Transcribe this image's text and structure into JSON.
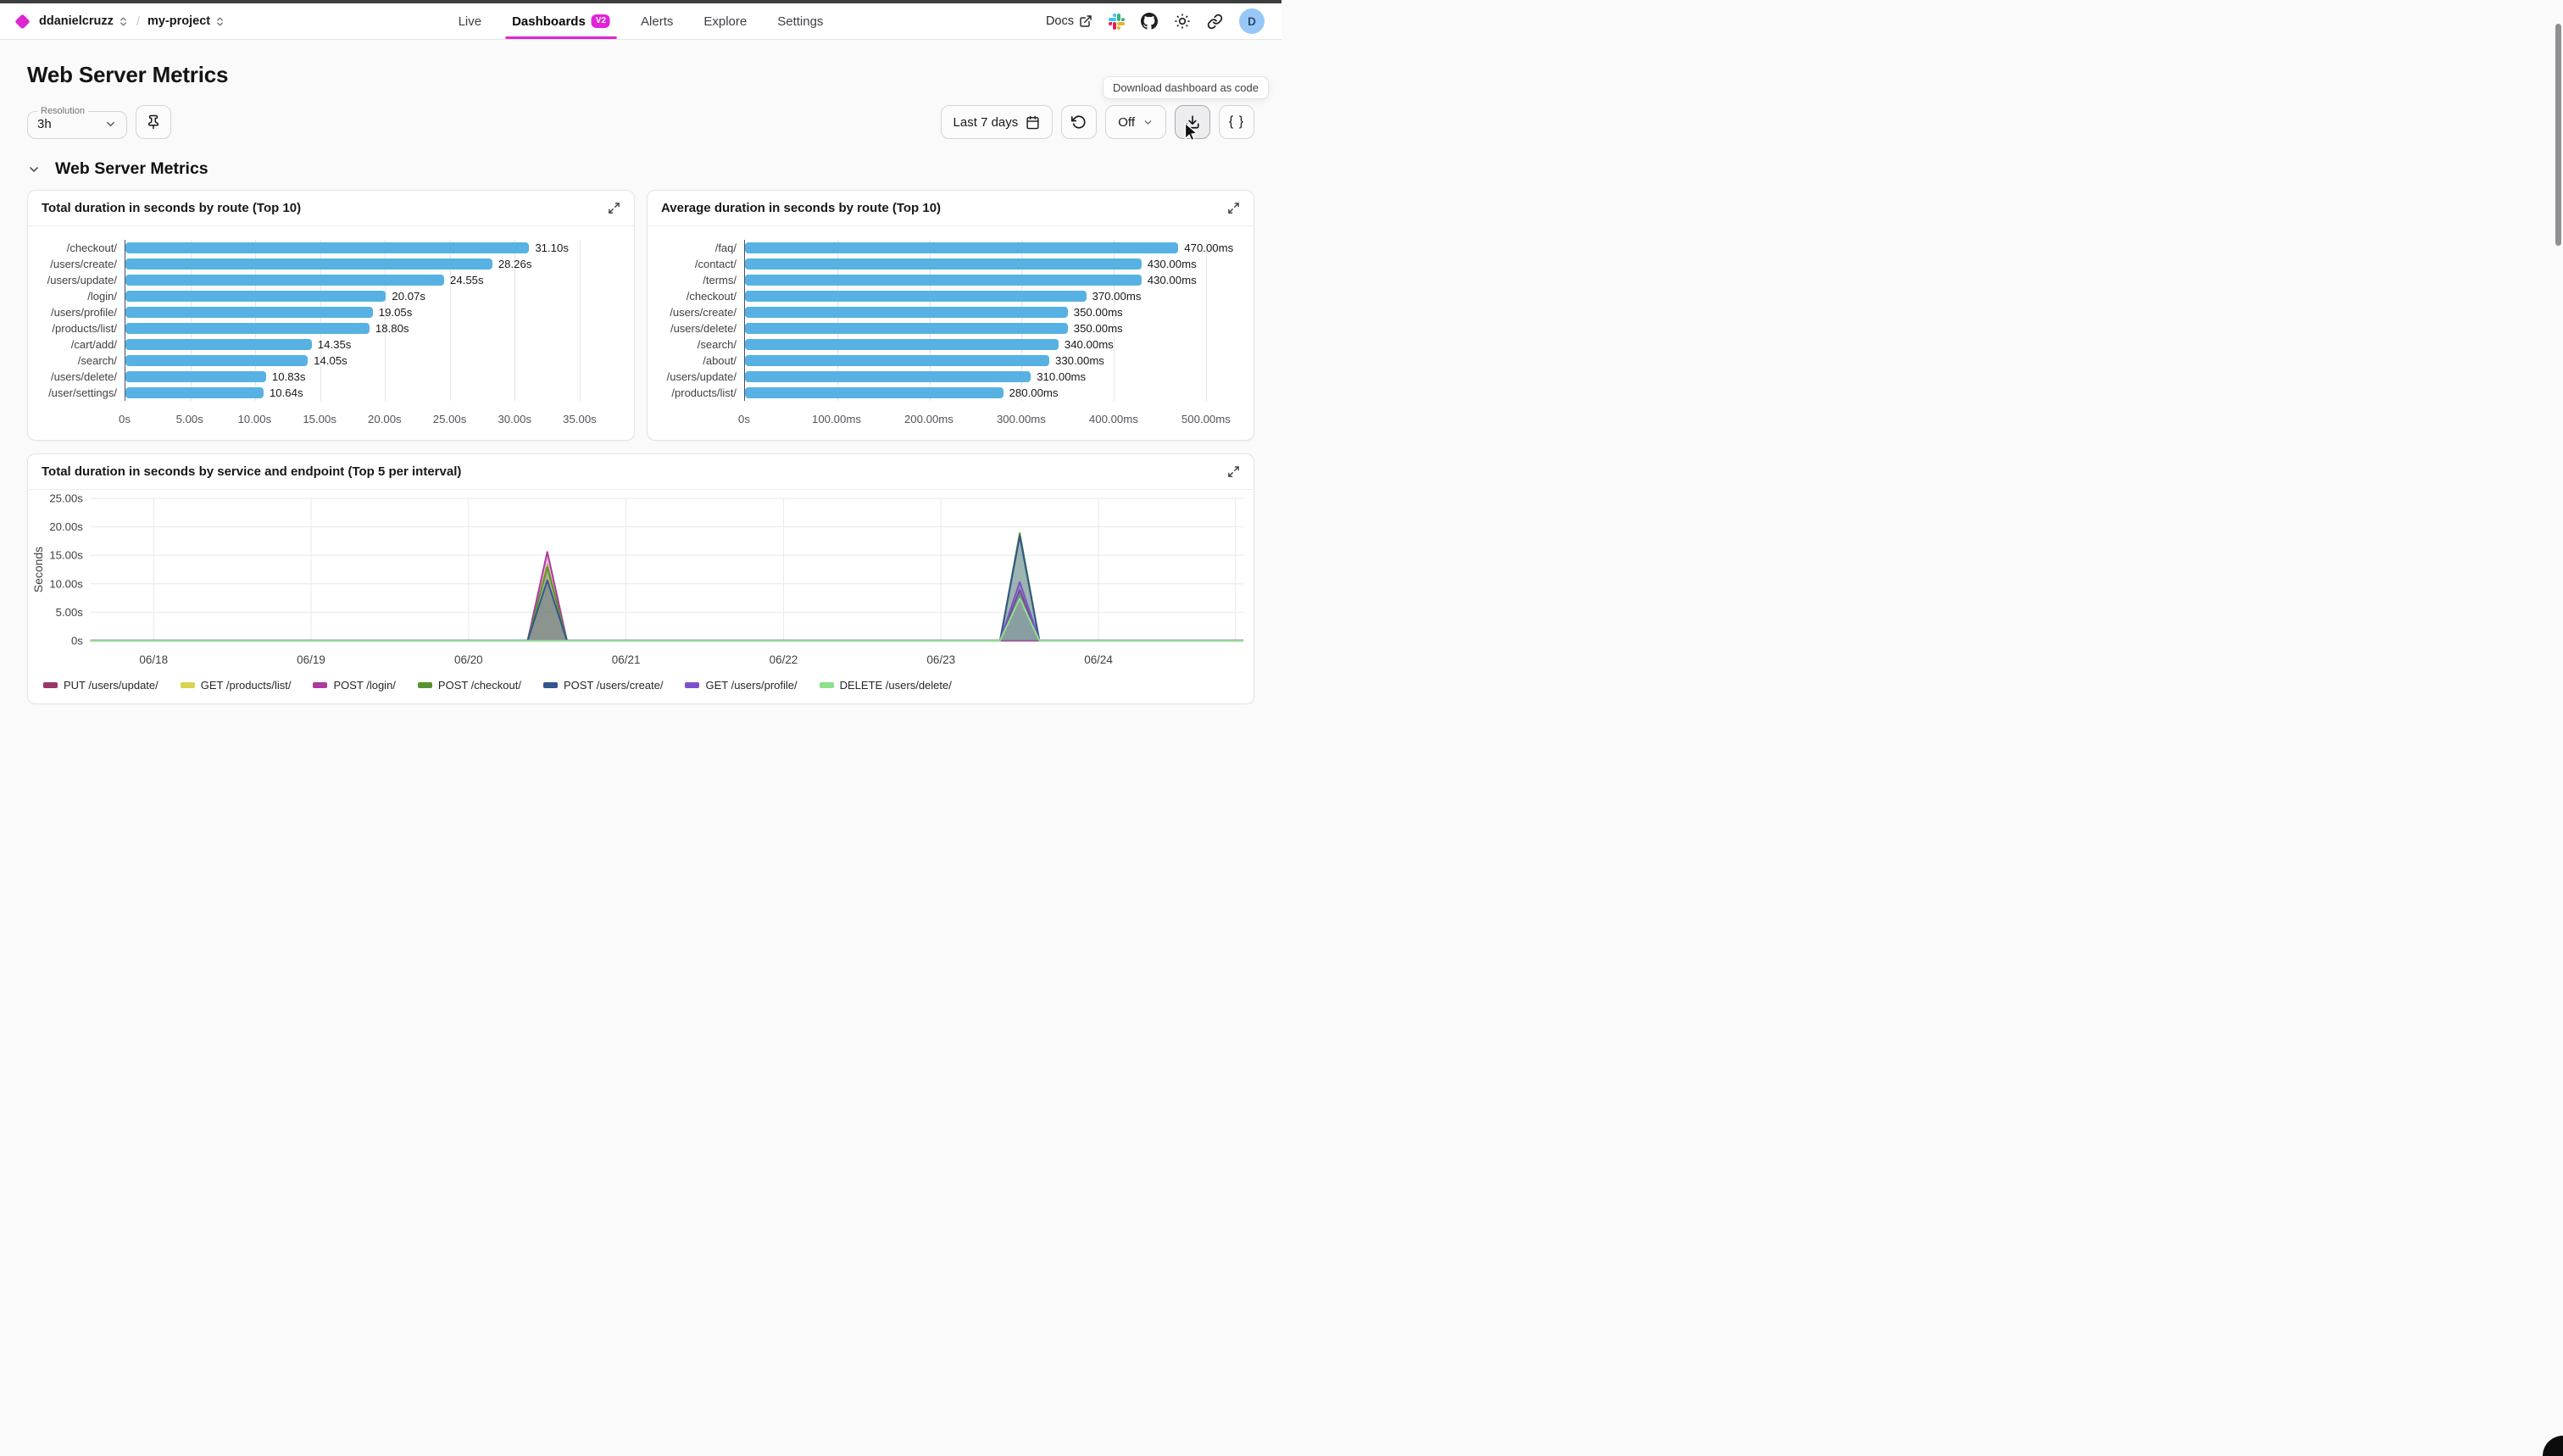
{
  "topbar": {
    "org": "ddanielcruzz",
    "separator": "/",
    "project": "my-project",
    "tabs": [
      {
        "label": "Live",
        "active": false
      },
      {
        "label": "Dashboards",
        "active": true,
        "badge": "V2"
      },
      {
        "label": "Alerts",
        "active": false
      },
      {
        "label": "Explore",
        "active": false
      },
      {
        "label": "Settings",
        "active": false
      }
    ],
    "docs_label": "Docs",
    "avatar_initial": "D",
    "accent_color": "#e222dd",
    "logo_color": "#df25cf"
  },
  "page": {
    "title": "Web Server Metrics",
    "section_title": "Web Server Metrics"
  },
  "controls": {
    "resolution_label": "Resolution",
    "resolution_value": "3h",
    "time_range_label": "Last 7 days",
    "auto_refresh_value": "Off",
    "code_button_label": "{ }",
    "tooltip": "Download dashboard as code"
  },
  "chart_data": [
    {
      "type": "bar",
      "orientation": "horizontal",
      "title": "Total duration in seconds by route (Top 10)",
      "categories": [
        "/checkout/",
        "/users/create/",
        "/users/update/",
        "/login/",
        "/users/profile/",
        "/products/list/",
        "/cart/add/",
        "/search/",
        "/users/delete/",
        "/user/settings/"
      ],
      "values": [
        31.1,
        28.26,
        24.55,
        20.07,
        19.05,
        18.8,
        14.35,
        14.05,
        10.83,
        10.64
      ],
      "value_labels": [
        "31.10s",
        "28.26s",
        "24.55s",
        "20.07s",
        "19.05s",
        "18.80s",
        "14.35s",
        "14.05s",
        "10.83s",
        "10.64s"
      ],
      "x_ticks": [
        {
          "v": 0,
          "label": "0s"
        },
        {
          "v": 5,
          "label": "5.00s"
        },
        {
          "v": 10,
          "label": "10.00s"
        },
        {
          "v": 15,
          "label": "15.00s"
        },
        {
          "v": 20,
          "label": "20.00s"
        },
        {
          "v": 25,
          "label": "25.00s"
        },
        {
          "v": 30,
          "label": "30.00s"
        },
        {
          "v": 35,
          "label": "35.00s"
        }
      ],
      "x_domain_max": 38,
      "bar_color": "#57b1e3",
      "grid": true
    },
    {
      "type": "bar",
      "orientation": "horizontal",
      "title": "Average duration in seconds by route (Top 10)",
      "categories": [
        "/faq/",
        "/contact/",
        "/terms/",
        "/checkout/",
        "/users/create/",
        "/users/delete/",
        "/search/",
        "/about/",
        "/users/update/",
        "/products/list/"
      ],
      "values": [
        470,
        430,
        430,
        370,
        350,
        350,
        340,
        330,
        310,
        280
      ],
      "value_labels": [
        "470.00ms",
        "430.00ms",
        "430.00ms",
        "370.00ms",
        "350.00ms",
        "350.00ms",
        "340.00ms",
        "330.00ms",
        "310.00ms",
        "280.00ms"
      ],
      "x_ticks": [
        {
          "v": 0,
          "label": "0s"
        },
        {
          "v": 100,
          "label": "100.00ms"
        },
        {
          "v": 200,
          "label": "200.00ms"
        },
        {
          "v": 300,
          "label": "300.00ms"
        },
        {
          "v": 400,
          "label": "400.00ms"
        },
        {
          "v": 500,
          "label": "500.00ms"
        }
      ],
      "x_domain_max": 535,
      "bar_color": "#57b1e3",
      "grid": true
    },
    {
      "type": "area",
      "title": "Total duration in seconds by service and endpoint (Top 5 per interval)",
      "ylabel": "Seconds",
      "y_ticks": [
        {
          "v": 0,
          "label": "0s"
        },
        {
          "v": 5,
          "label": "5.00s"
        },
        {
          "v": 10,
          "label": "10.00s"
        },
        {
          "v": 15,
          "label": "15.00s"
        },
        {
          "v": 20,
          "label": "20.00s"
        },
        {
          "v": 25,
          "label": "25.00s"
        }
      ],
      "y_max": 25,
      "x_domain": [
        17.6,
        24.92
      ],
      "x_ticks": [
        {
          "v": 18,
          "label": "06/18"
        },
        {
          "v": 19,
          "label": "06/19"
        },
        {
          "v": 20,
          "label": "06/20"
        },
        {
          "v": 21,
          "label": "06/21"
        },
        {
          "v": 22,
          "label": "06/22"
        },
        {
          "v": 23,
          "label": "06/23"
        },
        {
          "v": 24,
          "label": "06/24"
        }
      ],
      "spike_half_width_days": 0.125,
      "baseline_value": 0,
      "series": [
        {
          "name": "PUT /users/update/",
          "color": "#9a3667",
          "spikes": [
            {
              "x": 23.5,
              "peak": 8.9
            }
          ]
        },
        {
          "name": "GET /products/list/",
          "color": "#d8d44f",
          "spikes": [
            {
              "x": 20.5,
              "peak": 13.4
            }
          ]
        },
        {
          "name": "POST /login/",
          "color": "#ad3a9c",
          "spikes": [
            {
              "x": 20.5,
              "peak": 15.6
            }
          ]
        },
        {
          "name": "POST /checkout/",
          "color": "#579431",
          "spikes": [
            {
              "x": 20.5,
              "peak": 12.9
            },
            {
              "x": 23.5,
              "peak": 18.9
            }
          ]
        },
        {
          "name": "POST /users/create/",
          "color": "#33568c",
          "spikes": [
            {
              "x": 20.5,
              "peak": 10.6
            },
            {
              "x": 23.5,
              "peak": 18.4
            }
          ]
        },
        {
          "name": "GET /users/profile/",
          "color": "#7a52cc",
          "spikes": [
            {
              "x": 23.5,
              "peak": 10.3
            }
          ]
        },
        {
          "name": "DELETE /users/delete/",
          "color": "#8ce18a",
          "spikes": [
            {
              "x": 23.5,
              "peak": 7.4
            }
          ]
        }
      ],
      "legend_position": "bottom",
      "grid": true
    }
  ]
}
